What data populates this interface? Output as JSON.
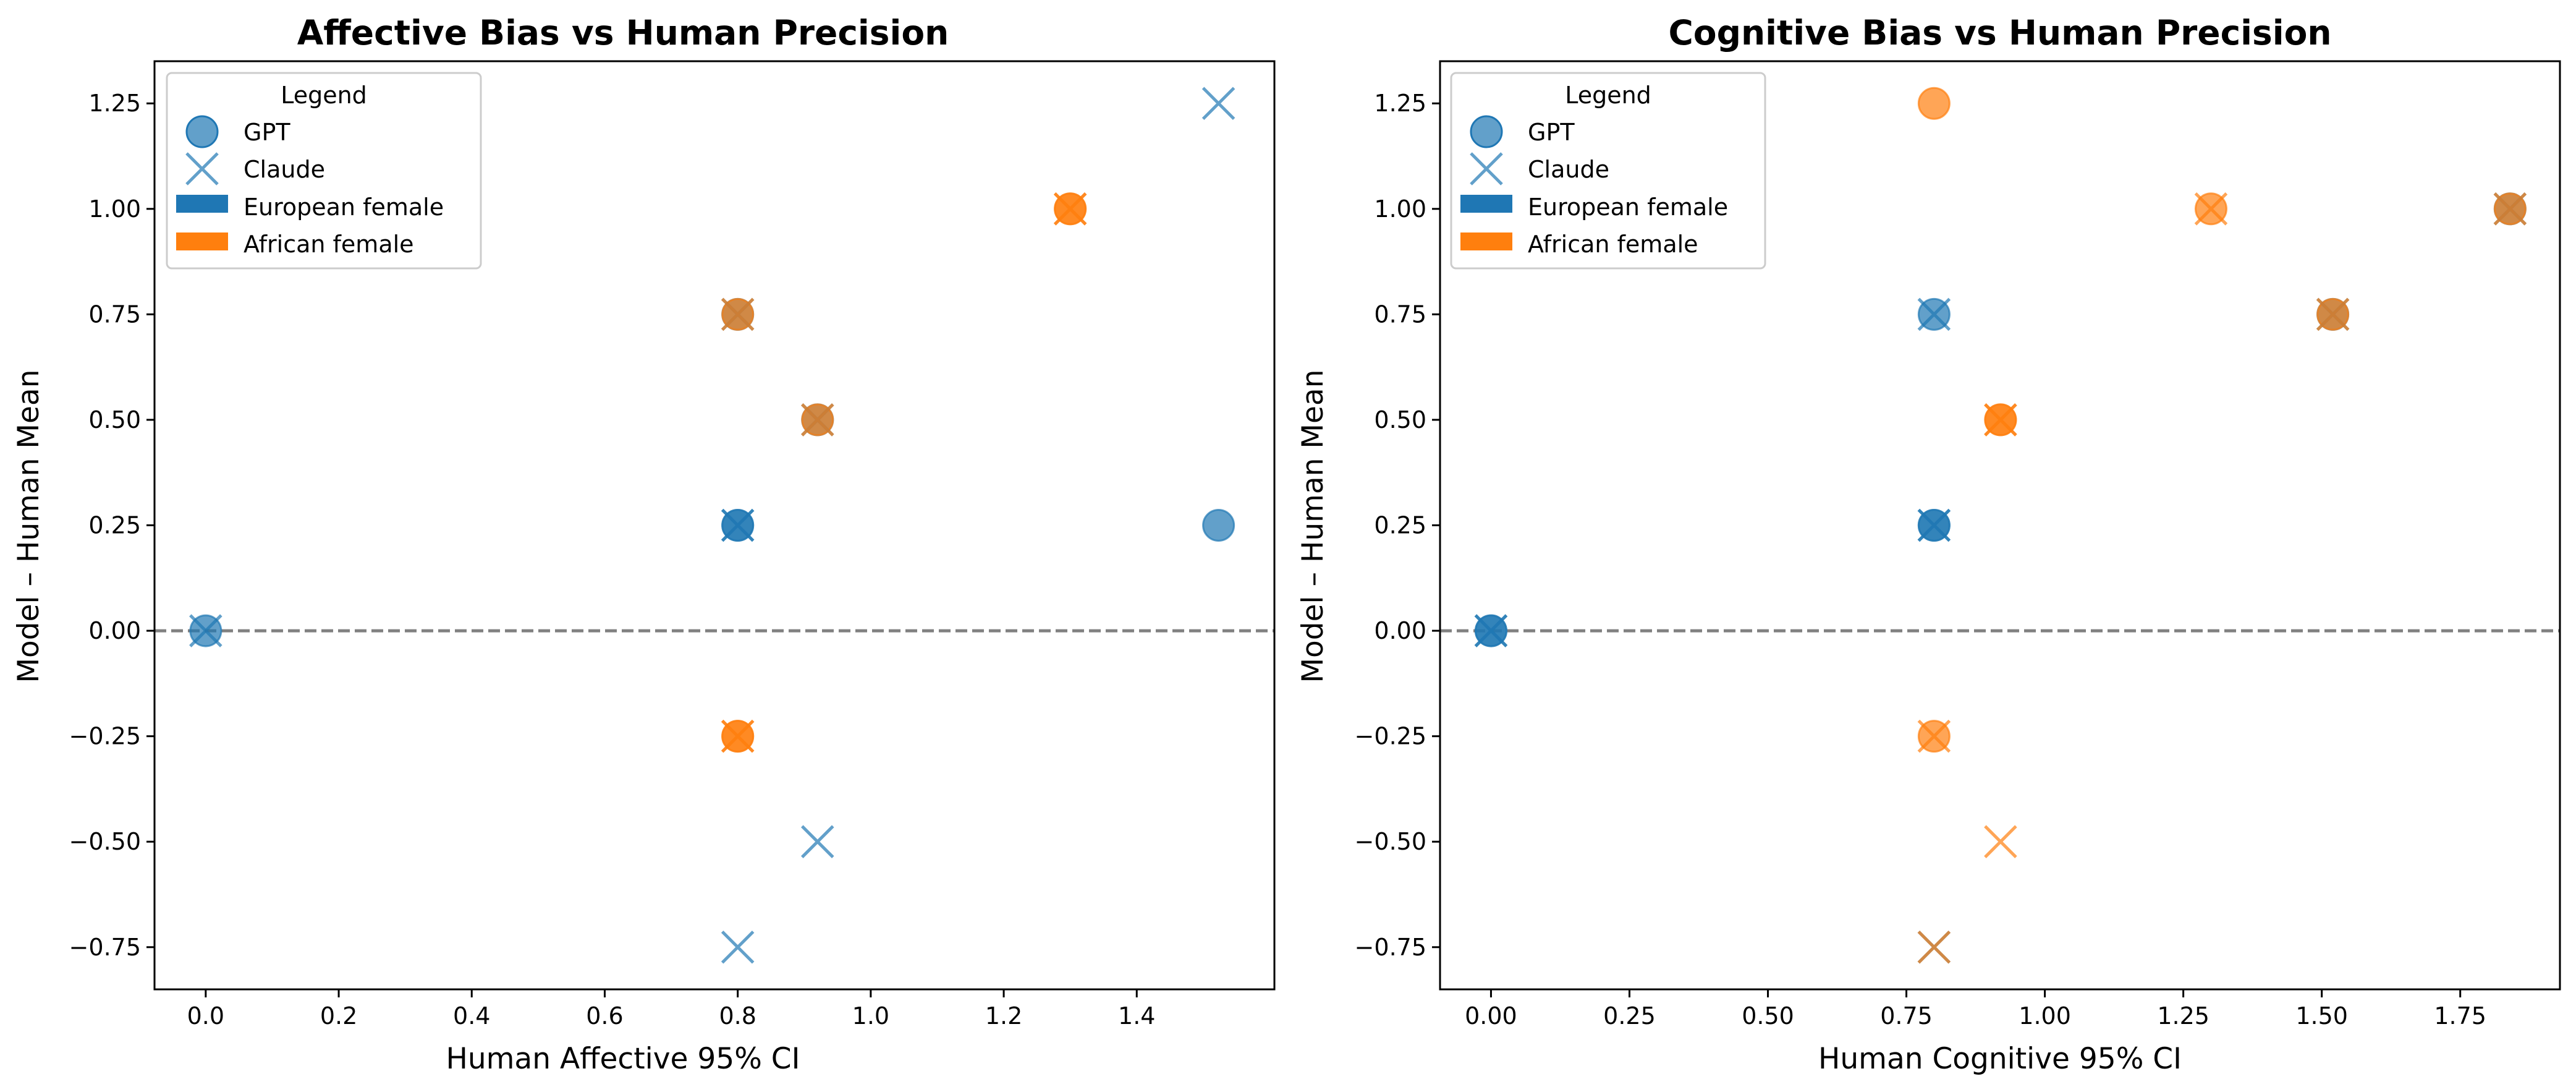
{
  "chart_data": [
    {
      "type": "scatter",
      "title": "Affective Bias vs Human Precision",
      "xlabel": "Human Affective 95% CI",
      "ylabel": "Model – Human Mean",
      "xlim": [
        -0.077,
        1.607
      ],
      "ylim": [
        -0.85,
        1.35
      ],
      "xticks": [
        0.0,
        0.2,
        0.4,
        0.6,
        0.8,
        1.0,
        1.2,
        1.4
      ],
      "xtick_labels": [
        "0.0",
        "0.2",
        "0.4",
        "0.6",
        "0.8",
        "1.0",
        "1.2",
        "1.4"
      ],
      "yticks": [
        -0.75,
        -0.5,
        -0.25,
        0.0,
        0.25,
        0.5,
        0.75,
        1.0,
        1.25
      ],
      "ytick_labels": [
        "−0.75",
        "−0.50",
        "−0.25",
        "0.00",
        "0.25",
        "0.50",
        "0.75",
        "1.00",
        "1.25"
      ],
      "reference_line": {
        "y": 0,
        "style": "dashed"
      },
      "grid": false,
      "legend": {
        "title": "Legend",
        "placement": "upper-left",
        "entries": [
          {
            "label": "GPT",
            "kind": "circle"
          },
          {
            "label": "Claude",
            "kind": "x"
          },
          {
            "label": "European female",
            "kind": "patch",
            "color": "#1f77b4"
          },
          {
            "label": "African female",
            "kind": "patch",
            "color": "#ff7f0e"
          }
        ]
      },
      "series": [
        {
          "name": "GPT",
          "marker": "circle",
          "points": [
            {
              "x": 0.0,
              "y": 0.0,
              "group": "European female"
            },
            {
              "x": 0.8,
              "y": 0.25,
              "group": "European female"
            },
            {
              "x": 0.8,
              "y": 0.25,
              "group": "European female"
            },
            {
              "x": 1.523,
              "y": 0.25,
              "group": "European female"
            },
            {
              "x": 0.8,
              "y": 0.75,
              "group": "European female"
            },
            {
              "x": 0.92,
              "y": 0.5,
              "group": "European female"
            },
            {
              "x": 0.8,
              "y": 0.75,
              "group": "African female"
            },
            {
              "x": 0.92,
              "y": 0.5,
              "group": "African female"
            },
            {
              "x": 0.8,
              "y": -0.25,
              "group": "African female"
            },
            {
              "x": 0.8,
              "y": -0.25,
              "group": "African female"
            },
            {
              "x": 1.3,
              "y": 1.0,
              "group": "African female"
            },
            {
              "x": 1.3,
              "y": 1.0,
              "group": "African female"
            }
          ]
        },
        {
          "name": "Claude",
          "marker": "x",
          "points": [
            {
              "x": 0.0,
              "y": 0.0,
              "group": "European female"
            },
            {
              "x": 0.8,
              "y": 0.25,
              "group": "European female"
            },
            {
              "x": 0.8,
              "y": 0.25,
              "group": "European female"
            },
            {
              "x": 0.8,
              "y": 0.75,
              "group": "European female"
            },
            {
              "x": 0.92,
              "y": 0.5,
              "group": "European female"
            },
            {
              "x": 0.92,
              "y": -0.5,
              "group": "European female"
            },
            {
              "x": 0.8,
              "y": -0.75,
              "group": "European female"
            },
            {
              "x": 1.523,
              "y": 1.25,
              "group": "European female"
            },
            {
              "x": 0.8,
              "y": 0.75,
              "group": "African female"
            },
            {
              "x": 0.92,
              "y": 0.5,
              "group": "African female"
            },
            {
              "x": 0.8,
              "y": -0.25,
              "group": "African female"
            },
            {
              "x": 0.8,
              "y": -0.25,
              "group": "African female"
            },
            {
              "x": 1.3,
              "y": 1.0,
              "group": "African female"
            },
            {
              "x": 1.3,
              "y": 1.0,
              "group": "African female"
            }
          ]
        }
      ]
    },
    {
      "type": "scatter",
      "title": "Cognitive Bias vs Human Precision",
      "xlabel": "Human Cognitive 95% CI",
      "ylabel": "Model – Human Mean",
      "xlim": [
        -0.092,
        1.93
      ],
      "ylim": [
        -0.85,
        1.35
      ],
      "xticks": [
        0.0,
        0.25,
        0.5,
        0.75,
        1.0,
        1.25,
        1.5,
        1.75
      ],
      "xtick_labels": [
        "0.00",
        "0.25",
        "0.50",
        "0.75",
        "1.00",
        "1.25",
        "1.50",
        "1.75"
      ],
      "yticks": [
        -0.75,
        -0.5,
        -0.25,
        0.0,
        0.25,
        0.5,
        0.75,
        1.0,
        1.25
      ],
      "ytick_labels": [
        "−0.75",
        "−0.50",
        "−0.25",
        "0.00",
        "0.25",
        "0.50",
        "0.75",
        "1.00",
        "1.25"
      ],
      "reference_line": {
        "y": 0,
        "style": "dashed"
      },
      "grid": false,
      "legend": {
        "title": "Legend",
        "placement": "upper-left",
        "entries": [
          {
            "label": "GPT",
            "kind": "circle"
          },
          {
            "label": "Claude",
            "kind": "x"
          },
          {
            "label": "European female",
            "kind": "patch",
            "color": "#1f77b4"
          },
          {
            "label": "African female",
            "kind": "patch",
            "color": "#ff7f0e"
          }
        ]
      },
      "series": [
        {
          "name": "GPT",
          "marker": "circle",
          "points": [
            {
              "x": 0.0,
              "y": 0.0,
              "group": "European female"
            },
            {
              "x": 0.0,
              "y": 0.0,
              "group": "European female"
            },
            {
              "x": 0.8,
              "y": 0.25,
              "group": "European female"
            },
            {
              "x": 0.8,
              "y": 0.25,
              "group": "European female"
            },
            {
              "x": 0.8,
              "y": 0.75,
              "group": "European female"
            },
            {
              "x": 1.52,
              "y": 0.75,
              "group": "European female"
            },
            {
              "x": 1.84,
              "y": 1.0,
              "group": "European female"
            },
            {
              "x": 1.52,
              "y": 0.75,
              "group": "African female"
            },
            {
              "x": 1.84,
              "y": 1.0,
              "group": "African female"
            },
            {
              "x": 0.8,
              "y": 1.25,
              "group": "African female"
            },
            {
              "x": 1.3,
              "y": 1.0,
              "group": "African female"
            },
            {
              "x": 0.92,
              "y": 0.5,
              "group": "African female"
            },
            {
              "x": 0.92,
              "y": 0.5,
              "group": "African female"
            },
            {
              "x": 0.8,
              "y": -0.25,
              "group": "African female"
            }
          ]
        },
        {
          "name": "Claude",
          "marker": "x",
          "points": [
            {
              "x": 0.0,
              "y": 0.0,
              "group": "European female"
            },
            {
              "x": 0.0,
              "y": 0.0,
              "group": "European female"
            },
            {
              "x": 0.8,
              "y": 0.25,
              "group": "European female"
            },
            {
              "x": 0.8,
              "y": 0.25,
              "group": "European female"
            },
            {
              "x": 0.8,
              "y": 0.75,
              "group": "European female"
            },
            {
              "x": 1.52,
              "y": 0.75,
              "group": "European female"
            },
            {
              "x": 1.84,
              "y": 1.0,
              "group": "European female"
            },
            {
              "x": 0.8,
              "y": -0.75,
              "group": "European female"
            },
            {
              "x": 1.52,
              "y": 0.75,
              "group": "African female"
            },
            {
              "x": 1.84,
              "y": 1.0,
              "group": "African female"
            },
            {
              "x": 0.8,
              "y": -0.75,
              "group": "African female"
            },
            {
              "x": 1.3,
              "y": 1.0,
              "group": "African female"
            },
            {
              "x": 0.92,
              "y": 0.5,
              "group": "African female"
            },
            {
              "x": 0.92,
              "y": 0.5,
              "group": "African female"
            },
            {
              "x": 0.92,
              "y": -0.5,
              "group": "African female"
            },
            {
              "x": 0.8,
              "y": -0.25,
              "group": "African female"
            }
          ]
        }
      ]
    }
  ]
}
